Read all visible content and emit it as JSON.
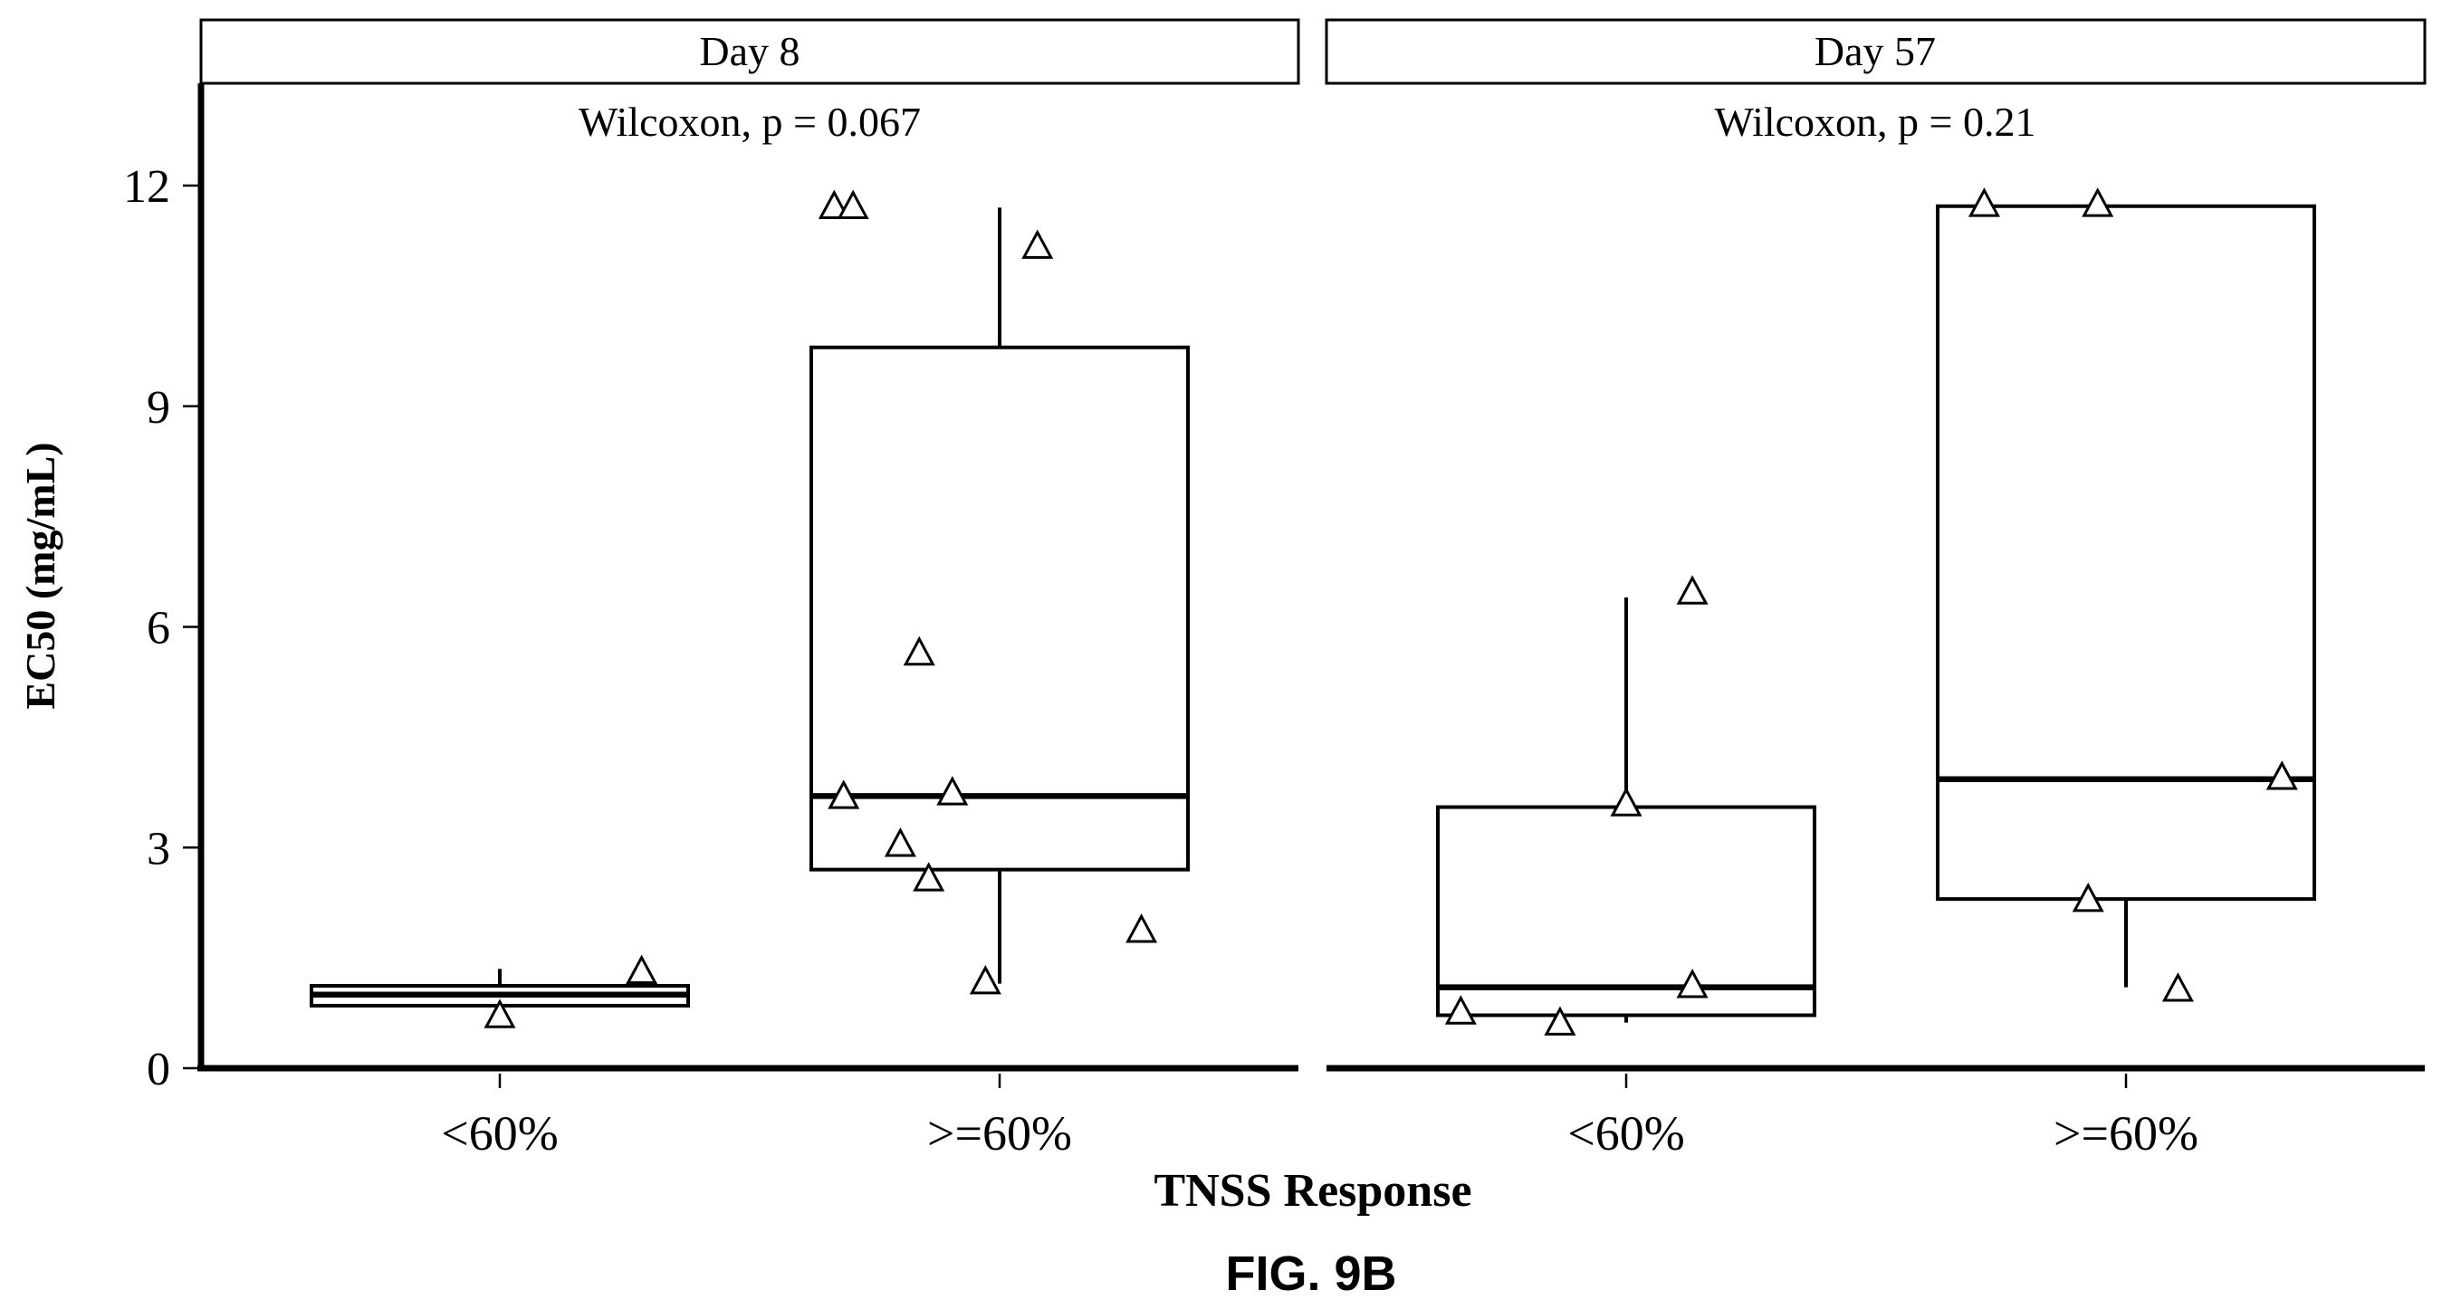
{
  "figure_label": "FIG. 9B",
  "chart_data": {
    "type": "box",
    "xlabel": "TNSS Response",
    "ylabel": "EC50 (mg/mL)",
    "ylim": [
      0,
      12.3
    ],
    "yticks": [
      0,
      3,
      6,
      9,
      12
    ],
    "ytick_labels": [
      "0",
      "3",
      "6",
      "9",
      "12"
    ],
    "grid": false,
    "categories": [
      "<60%",
      ">=60%"
    ],
    "panels": [
      {
        "strip": "Day 8",
        "annotation": "Wilcoxon, p = 0.067",
        "groups": [
          {
            "category": "<60%",
            "q1": 0.85,
            "median": 1.0,
            "q3": 1.12,
            "whisker_low": 0.85,
            "whisker_high": 1.35,
            "points": [
              {
                "offset": 0.0,
                "y": 0.72
              },
              {
                "offset": 0.3,
                "y": 1.32
              }
            ]
          },
          {
            "category": ">=60%",
            "q1": 2.7,
            "median": 3.7,
            "q3": 9.8,
            "whisker_low": 1.15,
            "whisker_high": 11.7,
            "points": [
              {
                "offset": -0.35,
                "y": 11.72
              },
              {
                "offset": -0.31,
                "y": 11.72
              },
              {
                "offset": 0.08,
                "y": 11.18
              },
              {
                "offset": -0.17,
                "y": 5.65
              },
              {
                "offset": -0.33,
                "y": 3.7
              },
              {
                "offset": -0.1,
                "y": 3.75
              },
              {
                "offset": -0.21,
                "y": 3.05
              },
              {
                "offset": -0.15,
                "y": 2.58
              },
              {
                "offset": -0.03,
                "y": 1.18
              },
              {
                "offset": 0.3,
                "y": 1.88
              }
            ]
          }
        ]
      },
      {
        "strip": "Day 57",
        "annotation": "Wilcoxon, p = 0.21",
        "groups": [
          {
            "category": "<60%",
            "q1": 0.72,
            "median": 1.1,
            "q3": 3.55,
            "whisker_low": 0.62,
            "whisker_high": 6.4,
            "points": [
              {
                "offset": -0.35,
                "y": 0.77
              },
              {
                "offset": -0.14,
                "y": 0.62
              },
              {
                "offset": 0.0,
                "y": 3.6
              },
              {
                "offset": 0.14,
                "y": 6.48
              },
              {
                "offset": 0.14,
                "y": 1.13
              }
            ]
          },
          {
            "category": ">=60%",
            "q1": 2.3,
            "median": 3.93,
            "q3": 11.72,
            "whisker_low": 1.1,
            "whisker_high": 11.72,
            "points": [
              {
                "offset": -0.3,
                "y": 11.75
              },
              {
                "offset": -0.06,
                "y": 11.75
              },
              {
                "offset": -0.08,
                "y": 2.3
              },
              {
                "offset": 0.11,
                "y": 1.08
              },
              {
                "offset": 0.33,
                "y": 3.96
              }
            ]
          }
        ]
      }
    ]
  }
}
